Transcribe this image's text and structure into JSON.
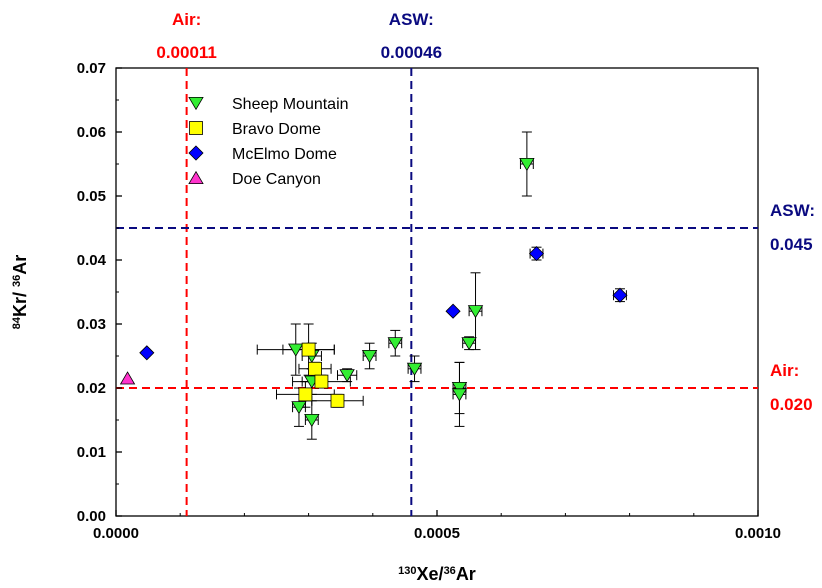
{
  "chart_data": {
    "type": "scatter",
    "xlabel": "130Xe/36Ar",
    "ylabel": "84Kr/ 36Ar",
    "xlim": [
      0,
      0.001
    ],
    "ylim": [
      0,
      0.07
    ],
    "x_ticks": [
      "0.0000",
      "0.0005",
      "0.0010"
    ],
    "x_tick_values": [
      0,
      0.0005,
      0.001
    ],
    "y_ticks": [
      "0.00",
      "0.01",
      "0.02",
      "0.03",
      "0.04",
      "0.05",
      "0.06",
      "0.07"
    ],
    "y_tick_values": [
      0,
      0.01,
      0.02,
      0.03,
      0.04,
      0.05,
      0.06,
      0.07
    ],
    "grid": false,
    "legend_position": "top-left",
    "reference_lines": [
      {
        "orientation": "vertical",
        "value": 0.00011,
        "color": "#ff0000",
        "label_line1": "Air:",
        "label_line2": "0.00011"
      },
      {
        "orientation": "vertical",
        "value": 0.00046,
        "color": "#0a0a80",
        "label_line1": "ASW:",
        "label_line2": "0.00046"
      },
      {
        "orientation": "horizontal",
        "value": 0.045,
        "color": "#0a0a80",
        "label_line1": "ASW:",
        "label_line2": "0.045"
      },
      {
        "orientation": "horizontal",
        "value": 0.02,
        "color": "#ff0000",
        "label_line1": "Air:",
        "label_line2": "0.020"
      }
    ],
    "series": [
      {
        "name": "Sheep Mountain",
        "marker": "triangle-down",
        "color": "#33ee33",
        "points": [
          {
            "x": 0.00064,
            "y": 0.055,
            "xerr": 1e-05,
            "yerr": 0.005
          },
          {
            "x": 0.00056,
            "y": 0.032,
            "xerr": 1e-05,
            "yerr": 0.006
          },
          {
            "x": 0.00055,
            "y": 0.027,
            "xerr": 1e-05,
            "yerr": 0.001
          },
          {
            "x": 0.000535,
            "y": 0.02,
            "xerr": 1e-05,
            "yerr": 0.004
          },
          {
            "x": 0.000535,
            "y": 0.019,
            "xerr": 1e-05,
            "yerr": 0.005
          },
          {
            "x": 0.000465,
            "y": 0.023,
            "xerr": 1e-05,
            "yerr": 0.002
          },
          {
            "x": 0.000435,
            "y": 0.027,
            "xerr": 1e-05,
            "yerr": 0.002
          },
          {
            "x": 0.000395,
            "y": 0.025,
            "xerr": 1e-05,
            "yerr": 0.002
          },
          {
            "x": 0.00036,
            "y": 0.022,
            "xerr": 1.5e-05,
            "yerr": 0.001
          },
          {
            "x": 0.000305,
            "y": 0.025,
            "xerr": 1.5e-05,
            "yerr": 0.002
          },
          {
            "x": 0.000305,
            "y": 0.021,
            "xerr": 1.5e-05,
            "yerr": 0.002
          },
          {
            "x": 0.00028,
            "y": 0.026,
            "xerr": 6e-05,
            "yerr": 0.004
          },
          {
            "x": 0.000285,
            "y": 0.017,
            "xerr": 1e-05,
            "yerr": 0.003
          },
          {
            "x": 0.000305,
            "y": 0.015,
            "xerr": 1e-05,
            "yerr": 0.003
          }
        ]
      },
      {
        "name": "Bravo Dome",
        "marker": "square",
        "color": "#ffff00",
        "points": [
          {
            "x": 0.0003,
            "y": 0.026,
            "xerr": 4e-05,
            "yerr": 0.004
          },
          {
            "x": 0.00031,
            "y": 0.023,
            "xerr": 2.5e-05,
            "yerr": 0.001
          },
          {
            "x": 0.00032,
            "y": 0.021,
            "xerr": 4.5e-05,
            "yerr": 0.001
          },
          {
            "x": 0.000295,
            "y": 0.019,
            "xerr": 4.5e-05,
            "yerr": 0.002
          },
          {
            "x": 0.000345,
            "y": 0.018,
            "xerr": 4e-05,
            "yerr": 0.001
          }
        ]
      },
      {
        "name": "McElmo Dome",
        "marker": "diamond",
        "color": "#0000ff",
        "points": [
          {
            "x": 4.8e-05,
            "y": 0.0255,
            "xerr": 0,
            "yerr": 0
          },
          {
            "x": 0.000525,
            "y": 0.032,
            "xerr": 0,
            "yerr": 0
          },
          {
            "x": 0.000655,
            "y": 0.041,
            "xerr": 1e-05,
            "yerr": 0.001
          },
          {
            "x": 0.000785,
            "y": 0.0345,
            "xerr": 1e-05,
            "yerr": 0.001
          }
        ]
      },
      {
        "name": "Doe Canyon",
        "marker": "triangle-up",
        "color": "#ff33cc",
        "points": [
          {
            "x": 1.8e-05,
            "y": 0.0215,
            "xerr": 0,
            "yerr": 0
          }
        ]
      }
    ]
  }
}
